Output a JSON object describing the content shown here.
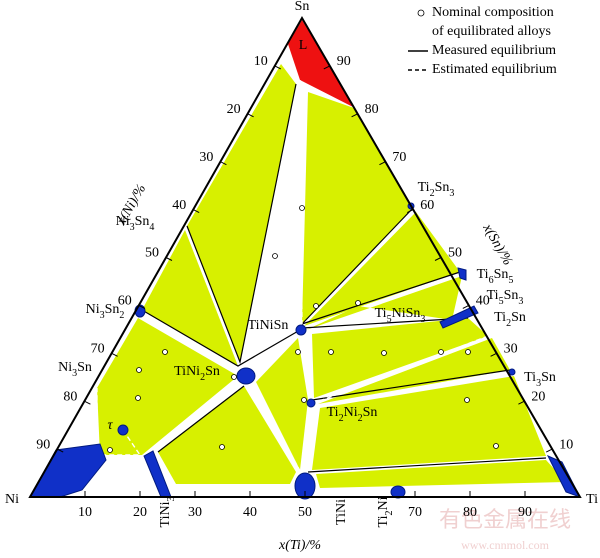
{
  "vertices": {
    "top": "Sn",
    "left": "Ni",
    "right": "Ti"
  },
  "axes": {
    "left": {
      "label": "x(Ni)/%",
      "ticks": [
        10,
        20,
        30,
        40,
        50,
        60,
        70,
        80,
        90
      ]
    },
    "right": {
      "label": "x(Sn)/%",
      "ticks": [
        10,
        20,
        30,
        40,
        50,
        60,
        70,
        80,
        90
      ]
    },
    "bottom": {
      "label": "x(Ti)/%",
      "ticks": [
        10,
        20,
        30,
        40,
        50,
        70,
        80,
        90
      ]
    }
  },
  "liquid": "L",
  "phases": [
    "Ni3Sn4",
    "Ni3Sn2",
    "Ni3Sn",
    "τ",
    "TiNi2Sn",
    "TiNiSn",
    "Ti5NiSn3",
    "Ti2Ni2Sn",
    "Ti2Sn3",
    "Ti6Sn5",
    "Ti5Sn3",
    "Ti2Sn",
    "Ti3Sn"
  ],
  "bottom_phases": [
    "TiNi3",
    "TiNi",
    "Ti2Ni"
  ],
  "legend": {
    "nominal": [
      "Nominal composition",
      "of equilibrated alloys"
    ],
    "measured": "Measured equilibrium",
    "estimated": "Estimated equilibrium"
  },
  "watermark": {
    "name": "有色金属在线",
    "url": "www.cnnmol.com"
  }
}
